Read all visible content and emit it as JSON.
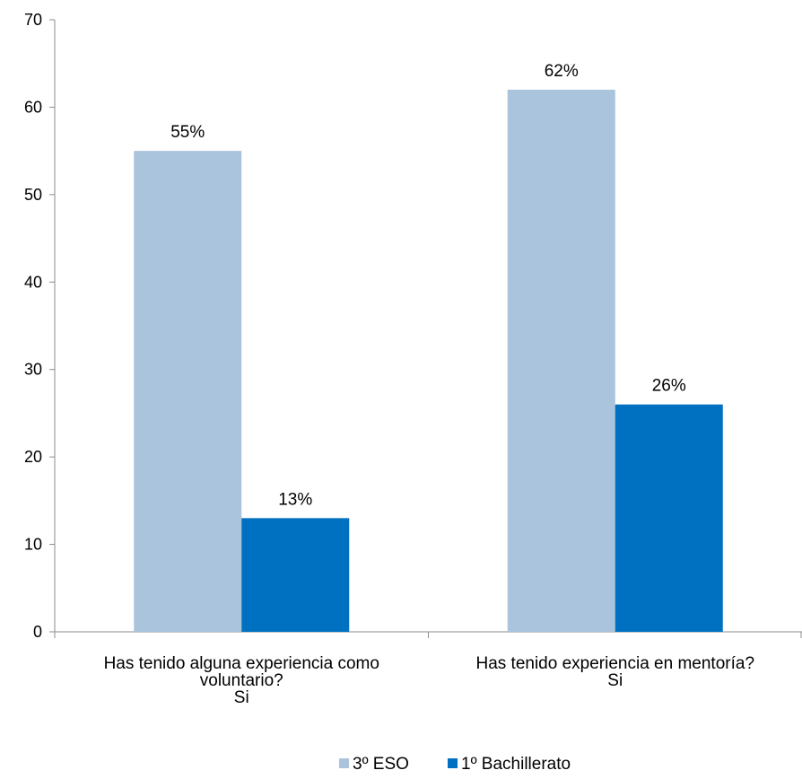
{
  "chart_data": {
    "type": "bar",
    "categories": [
      [
        "Has tenido alguna  experiencia como",
        "voluntario?",
        "Si"
      ],
      [
        "Has tenido experiencia en mentoría?",
        "Si"
      ]
    ],
    "series": [
      {
        "name": "3º ESO",
        "values": [
          55,
          62
        ],
        "labels": [
          "55%",
          "62%"
        ],
        "color": "#a9c4dc"
      },
      {
        "name": "1º Bachillerato",
        "values": [
          13,
          26
        ],
        "labels": [
          "13%",
          "26%"
        ],
        "color": "#0070c0"
      }
    ],
    "ylim": [
      0,
      70
    ],
    "yticks": [
      0,
      10,
      20,
      30,
      40,
      50,
      60,
      70
    ],
    "grid": false,
    "legend": "bottom"
  }
}
